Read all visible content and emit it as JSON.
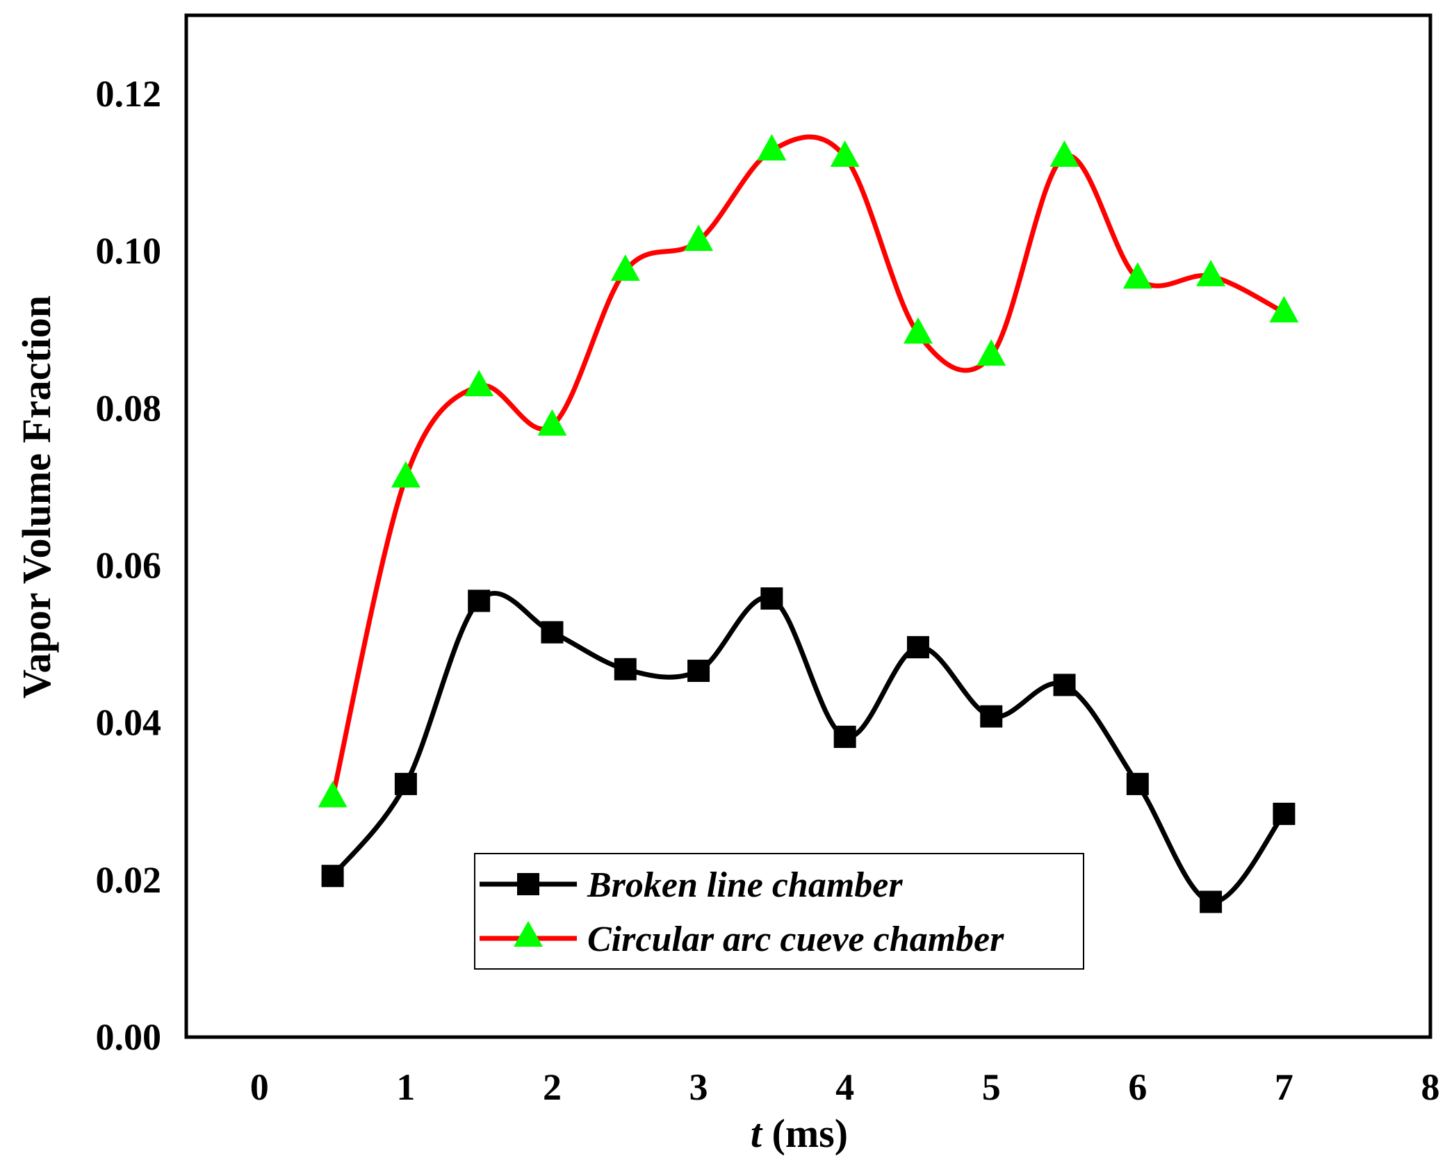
{
  "chart_data": {
    "type": "line",
    "xlabel_var": "t",
    "xlabel_unit": " (ms)",
    "ylabel": "Vapor Volume Fraction",
    "xlim": [
      -0.5,
      8
    ],
    "ylim": [
      0,
      0.13
    ],
    "xticks": [
      "0",
      "1",
      "2",
      "3",
      "4",
      "5",
      "6",
      "7",
      "8"
    ],
    "yticks": [
      "0.00",
      "0.02",
      "0.04",
      "0.06",
      "0.08",
      "0.10",
      "0.12"
    ],
    "grid": false,
    "legend_position": "bottom-center",
    "x": [
      0.5,
      1.0,
      1.5,
      2.0,
      2.5,
      3.0,
      3.5,
      4.0,
      4.5,
      5.0,
      5.5,
      6.0,
      6.5,
      7.0
    ],
    "series": [
      {
        "name": "Broken line chamber",
        "color": "#000000",
        "marker": "square",
        "values": [
          0.0205,
          0.0322,
          0.0555,
          0.0515,
          0.0468,
          0.0466,
          0.0558,
          0.0382,
          0.0496,
          0.0408,
          0.0448,
          0.0322,
          0.0172,
          0.0284
        ]
      },
      {
        "name": "Circular arc cueve chamber",
        "color": "#ff0000",
        "marker": "triangle",
        "marker_color": "#00ff00",
        "values": [
          0.0305,
          0.0712,
          0.0828,
          0.0778,
          0.0975,
          0.1013,
          0.1128,
          0.112,
          0.0895,
          0.0867,
          0.112,
          0.0965,
          0.0968,
          0.0922
        ]
      }
    ]
  }
}
